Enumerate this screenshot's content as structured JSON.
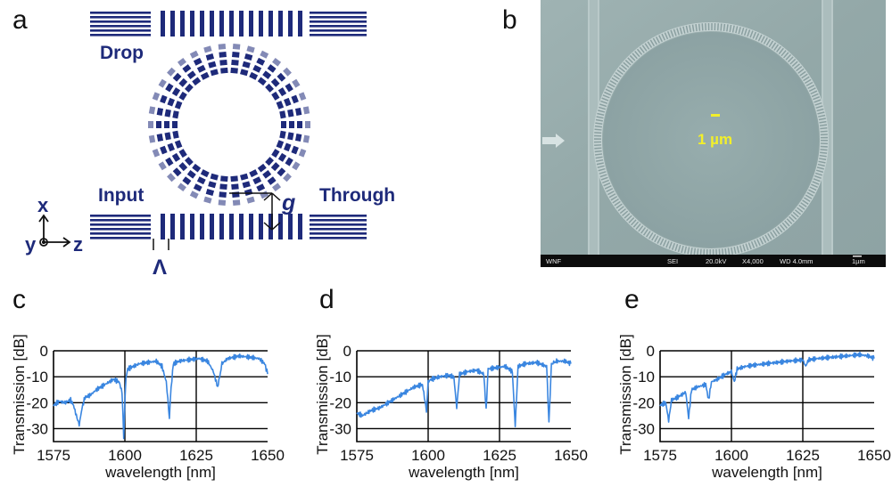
{
  "panel_labels": {
    "a": "a",
    "b": "b",
    "c": "c",
    "d": "d",
    "e": "e"
  },
  "diagram": {
    "drop": "Drop",
    "input": "Input",
    "through": "Through",
    "gap": "g",
    "period": "Λ",
    "axis_x": "x",
    "axis_y": "y",
    "axis_z": "z",
    "color": "#1e2a7a"
  },
  "sem": {
    "scale_label": "1 µm",
    "bar_text": {
      "left": "WNF",
      "sei": "SEI",
      "kv": "20.0kV",
      "mag": "X4,000",
      "wd": "WD 4.0mm",
      "scale": "1µm"
    },
    "label_color": "#f2ef2a"
  },
  "chart_data": [
    {
      "id": "c",
      "type": "line",
      "xlabel": "wavelength [nm]",
      "ylabel": "Transmission [dB]",
      "xlim": [
        1575,
        1650
      ],
      "ylim": [
        -35,
        0
      ],
      "xticks": [
        1575,
        1600,
        1625,
        1650
      ],
      "yticks": [
        0,
        -10,
        -20,
        -30
      ],
      "grid": true,
      "line_color": "#3a86e0",
      "x": [
        1575,
        1577,
        1579,
        1581,
        1582,
        1583,
        1584,
        1585,
        1586,
        1588,
        1590,
        1593,
        1596,
        1598,
        1599,
        1599.6,
        1600,
        1600.4,
        1601,
        1603,
        1605,
        1608,
        1611,
        1613,
        1614.5,
        1615.6,
        1616.2,
        1617,
        1619,
        1622,
        1626,
        1629,
        1631,
        1632.5,
        1633.2,
        1634,
        1636,
        1640,
        1644,
        1647,
        1649,
        1650
      ],
      "y": [
        -21,
        -19.5,
        -20,
        -19,
        -21,
        -25,
        -28.5,
        -22,
        -18,
        -17,
        -15,
        -13,
        -11,
        -12,
        -16,
        -34,
        -20,
        -10,
        -7,
        -6,
        -5,
        -4.5,
        -4,
        -6,
        -12,
        -26,
        -14,
        -5,
        -4,
        -3.5,
        -3,
        -4,
        -8,
        -14,
        -10,
        -5,
        -3,
        -2,
        -2.5,
        -3,
        -5,
        -9
      ]
    },
    {
      "id": "d",
      "type": "line",
      "xlabel": "wavelength [nm]",
      "ylabel": "Transmission [dB]",
      "xlim": [
        1575,
        1650
      ],
      "ylim": [
        -35,
        0
      ],
      "xticks": [
        1575,
        1600,
        1625,
        1650
      ],
      "yticks": [
        0,
        -10,
        -20,
        -30
      ],
      "grid": true,
      "line_color": "#3a86e0",
      "x": [
        1575,
        1577,
        1580,
        1583,
        1586,
        1589,
        1592,
        1595,
        1598,
        1599.4,
        1600,
        1601,
        1604,
        1607,
        1609,
        1610,
        1611,
        1614,
        1617,
        1619.5,
        1620.3,
        1621,
        1624,
        1627,
        1629.5,
        1630.5,
        1631.5,
        1634,
        1638,
        1641.5,
        1642.3,
        1643.2,
        1645,
        1648,
        1650
      ],
      "y": [
        -24,
        -25,
        -23,
        -22,
        -20,
        -18,
        -16,
        -14,
        -13,
        -23,
        -12,
        -11,
        -10,
        -9.5,
        -10,
        -22,
        -9,
        -8,
        -7.5,
        -9,
        -23,
        -7,
        -6.5,
        -6,
        -8,
        -29,
        -6,
        -5,
        -4.5,
        -6,
        -28,
        -5,
        -4,
        -4,
        -5
      ]
    },
    {
      "id": "e",
      "type": "line",
      "xlabel": "wavelength [nm]",
      "ylabel": "Transmission [dB]",
      "xlim": [
        1575,
        1650
      ],
      "ylim": [
        -35,
        0
      ],
      "xticks": [
        1575,
        1600,
        1625,
        1650
      ],
      "yticks": [
        0,
        -10,
        -20,
        -30
      ],
      "grid": true,
      "line_color": "#3a86e0",
      "x": [
        1575,
        1577,
        1578,
        1579,
        1581,
        1584,
        1585,
        1586,
        1588,
        1591,
        1592,
        1593,
        1595,
        1598,
        1600,
        1601,
        1602,
        1605,
        1608,
        1612,
        1616,
        1620,
        1625,
        1626,
        1627,
        1630,
        1635,
        1640,
        1645,
        1648,
        1650
      ],
      "y": [
        -21,
        -20,
        -27,
        -19,
        -18,
        -16,
        -26,
        -15,
        -14,
        -13,
        -19,
        -12,
        -11,
        -9,
        -8,
        -12,
        -7,
        -6,
        -5.5,
        -5,
        -4.5,
        -4,
        -3.5,
        -6,
        -3.5,
        -3,
        -2.5,
        -2,
        -1.5,
        -2,
        -3
      ]
    }
  ]
}
